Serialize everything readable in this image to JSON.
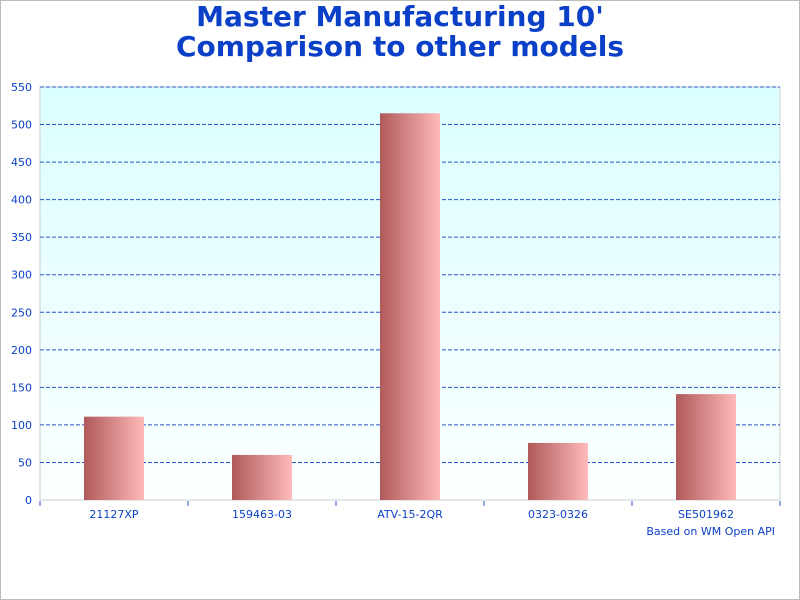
{
  "chart_data": {
    "type": "bar",
    "title_line1": "Master Manufacturing 10'",
    "title_line2": "Comparison to other models",
    "categories": [
      "21127XP",
      "159463-03",
      "ATV-15-2QR",
      "0323-0326",
      "SE501962"
    ],
    "values": [
      111,
      60,
      515,
      76,
      141
    ],
    "ylim": [
      0,
      550
    ],
    "yticks": [
      0,
      50,
      100,
      150,
      200,
      250,
      300,
      350,
      400,
      450,
      500,
      550
    ],
    "grid": true,
    "footnote": "Based on WM Open API",
    "colors": {
      "bar_dark": "#b05a5a",
      "bar_light": "#ffbaba",
      "plot_top": "#dcffff",
      "plot_bottom": "#fbffff",
      "grid": "#2a55c8",
      "text": "#0a3fc8"
    }
  }
}
